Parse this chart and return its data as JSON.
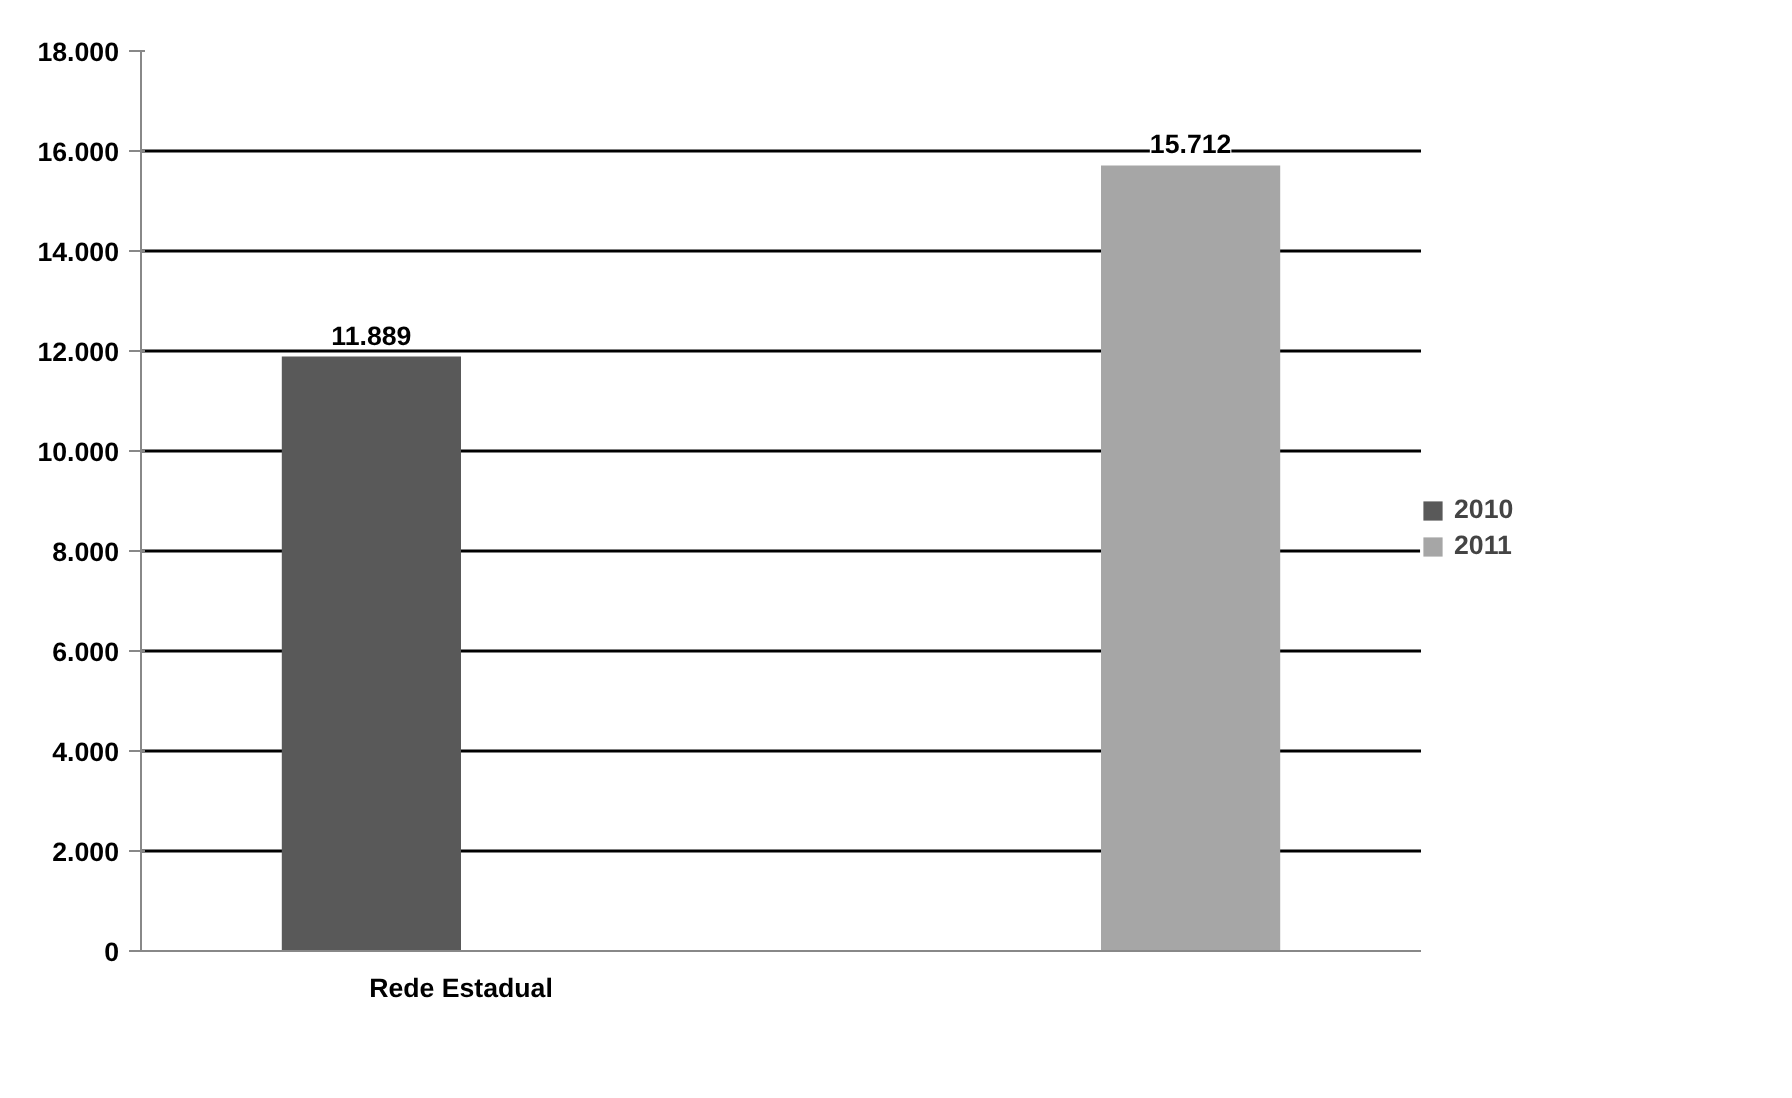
{
  "chart_data": {
    "type": "bar",
    "categories": [
      "Rede Estadual",
      null
    ],
    "series": [
      {
        "name": "2010",
        "color": "#595959",
        "values": [
          11889,
          null
        ],
        "value_labels": [
          "11.889",
          null
        ]
      },
      {
        "name": "2011",
        "color": "#a6a6a6",
        "values": [
          null,
          15712
        ],
        "value_labels": [
          null,
          "15.712"
        ]
      }
    ],
    "ylim": [
      0,
      18000
    ],
    "yticks": [
      {
        "value": 0,
        "label": "0"
      },
      {
        "value": 2000,
        "label": "2.000"
      },
      {
        "value": 4000,
        "label": "4.000"
      },
      {
        "value": 6000,
        "label": "6.000"
      },
      {
        "value": 8000,
        "label": "8.000"
      },
      {
        "value": 10000,
        "label": "10.000"
      },
      {
        "value": 12000,
        "label": "12.000"
      },
      {
        "value": 14000,
        "label": "14.000"
      },
      {
        "value": 16000,
        "label": "16.000"
      },
      {
        "value": 18000,
        "label": "18.000"
      }
    ],
    "grid": "y",
    "legend": "right"
  }
}
